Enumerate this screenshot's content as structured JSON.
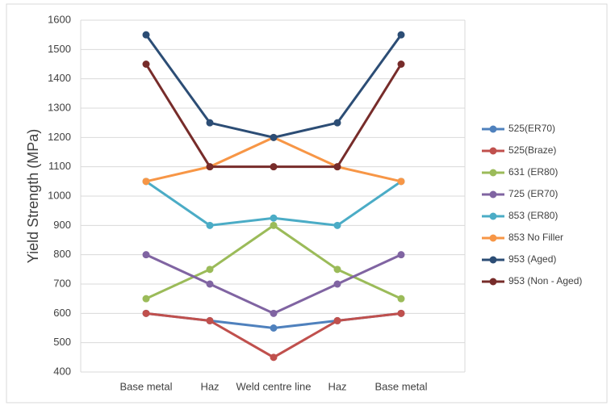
{
  "chart_data": {
    "type": "line",
    "y_label": "Yield Strength (MPa)",
    "categories": [
      "Base metal",
      "Haz",
      "Weld centre line",
      "Haz",
      "Base metal"
    ],
    "ylim": [
      400,
      1600
    ],
    "yticks": [
      400,
      500,
      600,
      700,
      800,
      900,
      1000,
      1100,
      1200,
      1300,
      1400,
      1500,
      1600
    ],
    "grid": true,
    "legend": "right",
    "series": [
      {
        "name": "525(ER70)",
        "color": "#4f81bd",
        "values": [
          600,
          575,
          550,
          575,
          600
        ]
      },
      {
        "name": "525(Braze)",
        "color": "#c0504d",
        "values": [
          600,
          575,
          450,
          575,
          600
        ]
      },
      {
        "name": "631 (ER80)",
        "color": "#9bbb59",
        "values": [
          650,
          750,
          900,
          750,
          650
        ]
      },
      {
        "name": "725 (ER70)",
        "color": "#8064a2",
        "values": [
          800,
          700,
          600,
          700,
          800
        ]
      },
      {
        "name": "853 (ER80)",
        "color": "#4bacc6",
        "values": [
          1050,
          900,
          925,
          900,
          1050
        ]
      },
      {
        "name": "853 No Filler",
        "color": "#f79646",
        "values": [
          1050,
          1100,
          1200,
          1100,
          1050
        ]
      },
      {
        "name": "953 (Aged)",
        "color": "#2c4d75",
        "values": [
          1550,
          1250,
          1200,
          1250,
          1550
        ]
      },
      {
        "name": "953 (Non - Aged)",
        "color": "#772c2a",
        "values": [
          1450,
          1100,
          1100,
          1100,
          1450
        ]
      }
    ]
  }
}
